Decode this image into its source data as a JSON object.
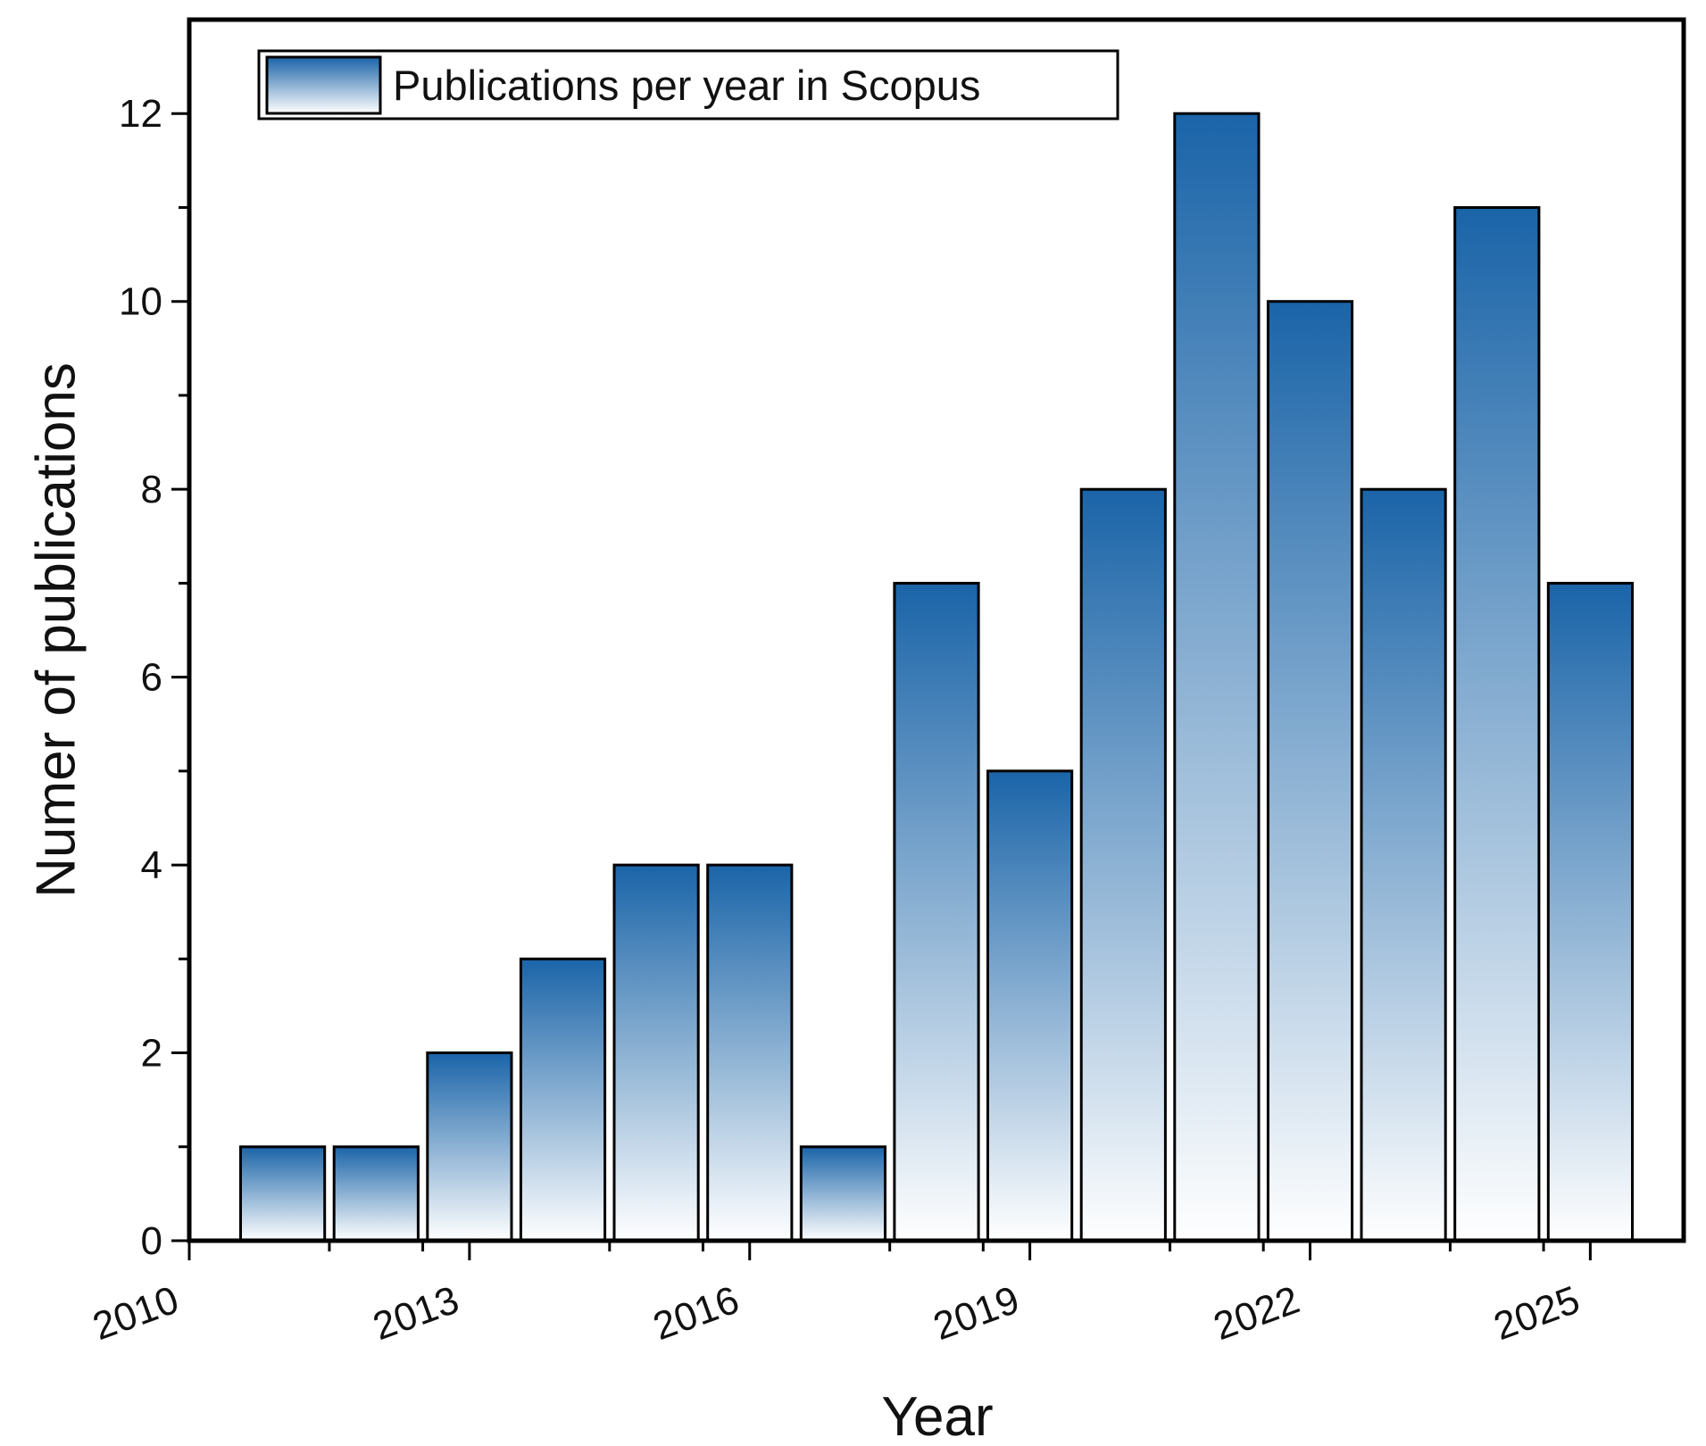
{
  "chart_data": {
    "type": "bar",
    "title": "",
    "xlabel": "Year",
    "ylabel": "Numer of publications",
    "x": [
      2011,
      2012,
      2013,
      2014,
      2015,
      2016,
      2017,
      2018,
      2019,
      2020,
      2021,
      2022,
      2023,
      2024,
      2025
    ],
    "series": [
      {
        "name": "Publications per year in Scopus",
        "values": [
          1,
          1,
          2,
          3,
          4,
          4,
          1,
          7,
          5,
          8,
          12,
          10,
          8,
          11,
          7
        ]
      }
    ],
    "xlim": [
      2010,
      2026
    ],
    "ylim": [
      0,
      13
    ],
    "x_ticks": [
      "2010",
      "2013",
      "2016",
      "2019",
      "2022",
      "2025"
    ],
    "y_ticks": [
      "0",
      "2",
      "4",
      "6",
      "8",
      "10",
      "12"
    ],
    "grid": false,
    "legend_position": "top-left",
    "colors": {
      "bar_top": "#1a64a8",
      "bar_bottom": "#ffffff",
      "bar_outline": "#000000",
      "axis": "#000000"
    }
  }
}
